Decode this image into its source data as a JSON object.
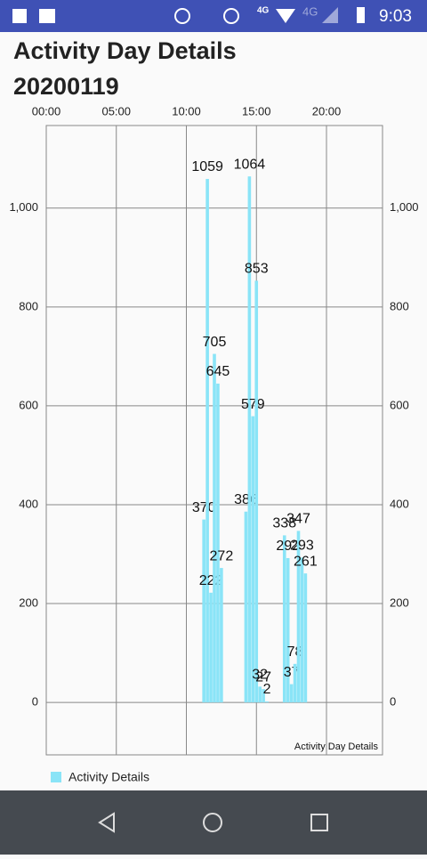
{
  "status_bar": {
    "network": "4G",
    "network_off": "4G",
    "time": "9:03"
  },
  "header": {
    "title": "Activity Day Details",
    "date": "20200119"
  },
  "chart_data": {
    "type": "bar",
    "x": [
      675,
      690,
      705,
      720,
      735,
      750,
      855,
      870,
      885,
      900,
      915,
      930,
      945,
      1020,
      1035,
      1050,
      1065,
      1080,
      1095,
      1110
    ],
    "series": [
      {
        "name": "Activity Details",
        "color": "#8ae4f7",
        "values": [
          370,
          1059,
          222,
          705,
          645,
          272,
          386,
          1064,
          579,
          853,
          32,
          27,
          2,
          338,
          292,
          37,
          78,
          347,
          293,
          261
        ]
      }
    ],
    "xlim": [
      0,
      1440
    ],
    "xticks": [
      {
        "value": 0,
        "label": "00:00"
      },
      {
        "value": 300,
        "label": "05:00"
      },
      {
        "value": 600,
        "label": "10:00"
      },
      {
        "value": 900,
        "label": "15:00"
      },
      {
        "value": 1200,
        "label": "20:00"
      }
    ],
    "ylim": [
      -106,
      1167
    ],
    "yticks": [
      0,
      200,
      400,
      600,
      800,
      {
        "value": 1000,
        "label": "1,000"
      }
    ],
    "grid": true,
    "description": "Activity Day Details"
  }
}
